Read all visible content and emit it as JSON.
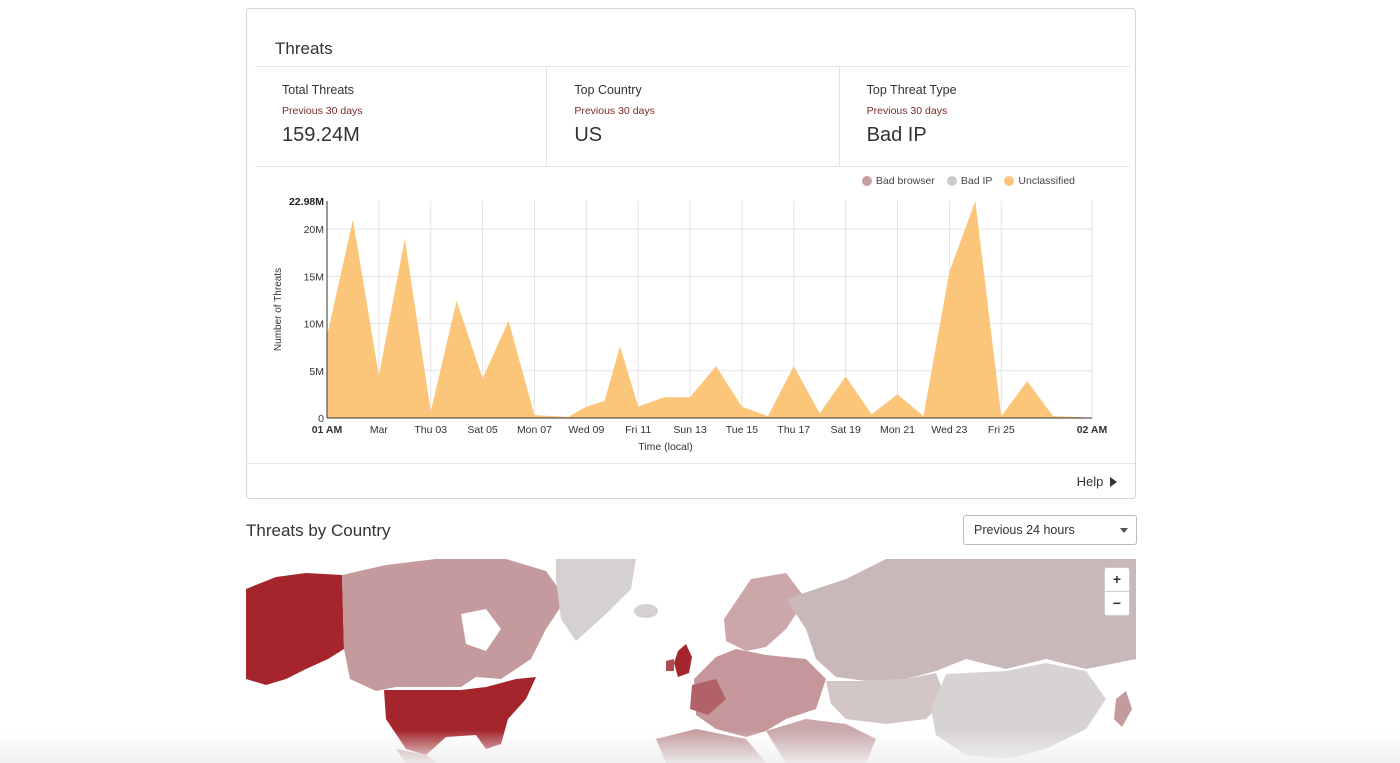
{
  "card": {
    "title": "Threats",
    "stats": [
      {
        "label": "Total Threats",
        "sub": "Previous 30 days",
        "value": "159.24M"
      },
      {
        "label": "Top Country",
        "sub": "Previous 30 days",
        "value": "US"
      },
      {
        "label": "Top Threat Type",
        "sub": "Previous 30 days",
        "value": "Bad IP"
      }
    ],
    "help_label": "Help"
  },
  "legend": [
    {
      "name": "Bad browser",
      "color": "#c9a0a0"
    },
    {
      "name": "Bad IP",
      "color": "#cccccc"
    },
    {
      "name": "Unclassified",
      "color": "#fbc67a"
    }
  ],
  "chart_data": {
    "type": "area",
    "xlabel": "Time (local)",
    "ylabel": "Number of Threats",
    "ymax_label": "22.98M",
    "ylim": [
      0,
      22.98
    ],
    "yticks": [
      {
        "v": 0,
        "label": "0"
      },
      {
        "v": 5,
        "label": "5M"
      },
      {
        "v": 10,
        "label": "10M"
      },
      {
        "v": 15,
        "label": "15M"
      },
      {
        "v": 20,
        "label": "20M"
      }
    ],
    "xlim": [
      0,
      29.5
    ],
    "xticks": [
      {
        "x": 0,
        "label": "01 AM",
        "bold": true
      },
      {
        "x": 2,
        "label": "Mar",
        "bold": false
      },
      {
        "x": 4,
        "label": "Thu 03",
        "bold": false
      },
      {
        "x": 6,
        "label": "Sat 05",
        "bold": false
      },
      {
        "x": 8,
        "label": "Mon 07",
        "bold": false
      },
      {
        "x": 10,
        "label": "Wed 09",
        "bold": false
      },
      {
        "x": 12,
        "label": "Fri 11",
        "bold": false
      },
      {
        "x": 14,
        "label": "Sun 13",
        "bold": false
      },
      {
        "x": 16,
        "label": "Tue 15",
        "bold": false
      },
      {
        "x": 18,
        "label": "Thu 17",
        "bold": false
      },
      {
        "x": 20,
        "label": "Sat 19",
        "bold": false
      },
      {
        "x": 22,
        "label": "Mon 21",
        "bold": false
      },
      {
        "x": 24,
        "label": "Wed 23",
        "bold": false
      },
      {
        "x": 26,
        "label": "Fri 25",
        "bold": false
      },
      {
        "x": 29.5,
        "label": "02 AM",
        "bold": true
      }
    ],
    "series": [
      {
        "name": "Unclassified",
        "color": "#fbc67a",
        "x": [
          0,
          1,
          2,
          3,
          4,
          5,
          6,
          7,
          8,
          8.7,
          9.3,
          10,
          10.7,
          11.3,
          12,
          13,
          14,
          15,
          16,
          17,
          18,
          19,
          20,
          21,
          22,
          23,
          24,
          25,
          26,
          27,
          28,
          29,
          29.5
        ],
        "values": [
          8.7,
          21.0,
          4.5,
          19.0,
          0.7,
          12.4,
          4.2,
          10.3,
          0.3,
          0.2,
          0.1,
          1.2,
          1.8,
          7.6,
          1.2,
          2.2,
          2.2,
          5.5,
          1.2,
          0.2,
          5.5,
          0.5,
          4.4,
          0.4,
          2.5,
          0.2,
          15.5,
          22.98,
          0.2,
          3.9,
          0.2,
          0.1,
          0
        ]
      }
    ]
  },
  "country_section": {
    "title": "Threats by Country",
    "range_select": "Previous 24 hours",
    "zoom_in": "+",
    "zoom_out": "−"
  }
}
